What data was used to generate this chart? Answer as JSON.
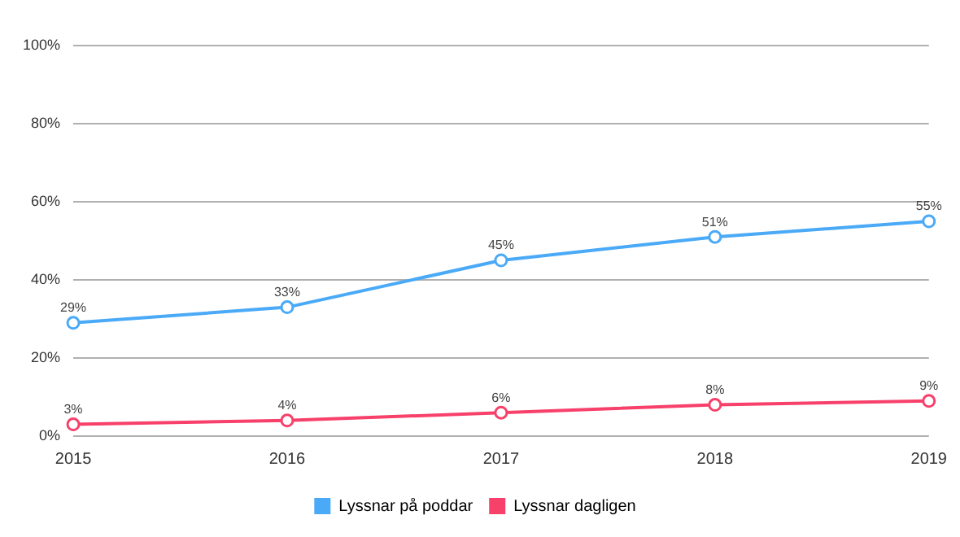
{
  "chart_data": {
    "type": "line",
    "categories": [
      "2015",
      "2016",
      "2017",
      "2018",
      "2019"
    ],
    "series": [
      {
        "name": "Lyssnar på poddar",
        "color": "#4aaaf7",
        "values": [
          29,
          33,
          45,
          51,
          55
        ],
        "value_labels": [
          "29%",
          "33%",
          "45%",
          "51%",
          "55%"
        ]
      },
      {
        "name": "Lyssnar dagligen",
        "color": "#f7406a",
        "values": [
          3,
          4,
          6,
          8,
          9
        ],
        "value_labels": [
          "3%",
          "4%",
          "6%",
          "8%",
          "9%"
        ]
      }
    ],
    "ylim": [
      0,
      100
    ],
    "yticks": [
      {
        "value": 0,
        "label": "0%"
      },
      {
        "value": 20,
        "label": "20%"
      },
      {
        "value": 40,
        "label": "40%"
      },
      {
        "value": 60,
        "label": "60%"
      },
      {
        "value": 80,
        "label": "80%"
      },
      {
        "value": 100,
        "label": "100%"
      }
    ],
    "grid": "y",
    "legend": "bottom",
    "marker": "circle",
    "line_style": "solid"
  }
}
